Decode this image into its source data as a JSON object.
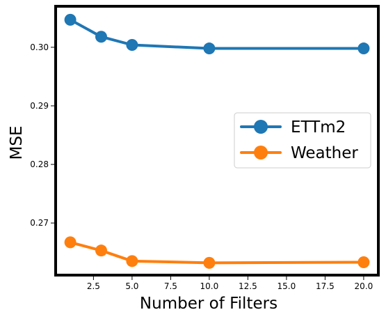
{
  "chart_data": {
    "type": "line",
    "title": "",
    "xlabel": "Number of Filters",
    "ylabel": "MSE",
    "xlim": [
      0.05,
      20.95
    ],
    "ylim": [
      0.2611,
      0.307
    ],
    "xticks": [
      2.5,
      5.0,
      7.5,
      10.0,
      12.5,
      15.0,
      17.5,
      20.0
    ],
    "xtick_labels": [
      "2.5",
      "5.0",
      "7.5",
      "10.0",
      "12.5",
      "15.0",
      "17.5",
      "20.0"
    ],
    "yticks": [
      0.27,
      0.28,
      0.29,
      0.3
    ],
    "ytick_labels": [
      "0.27",
      "0.28",
      "0.29",
      "0.30"
    ],
    "grid": false,
    "legend_position": "center-right",
    "series": [
      {
        "name": "ETTm2",
        "color": "#1f77b4",
        "marker": "circle",
        "x": [
          1,
          3,
          5,
          10,
          20
        ],
        "y": [
          0.3047,
          0.3018,
          0.3004,
          0.2998,
          0.2998
        ]
      },
      {
        "name": "Weather",
        "color": "#ff7f0e",
        "marker": "circle",
        "x": [
          1,
          3,
          5,
          10,
          20
        ],
        "y": [
          0.2667,
          0.2653,
          0.2635,
          0.2632,
          0.2633
        ]
      }
    ]
  }
}
